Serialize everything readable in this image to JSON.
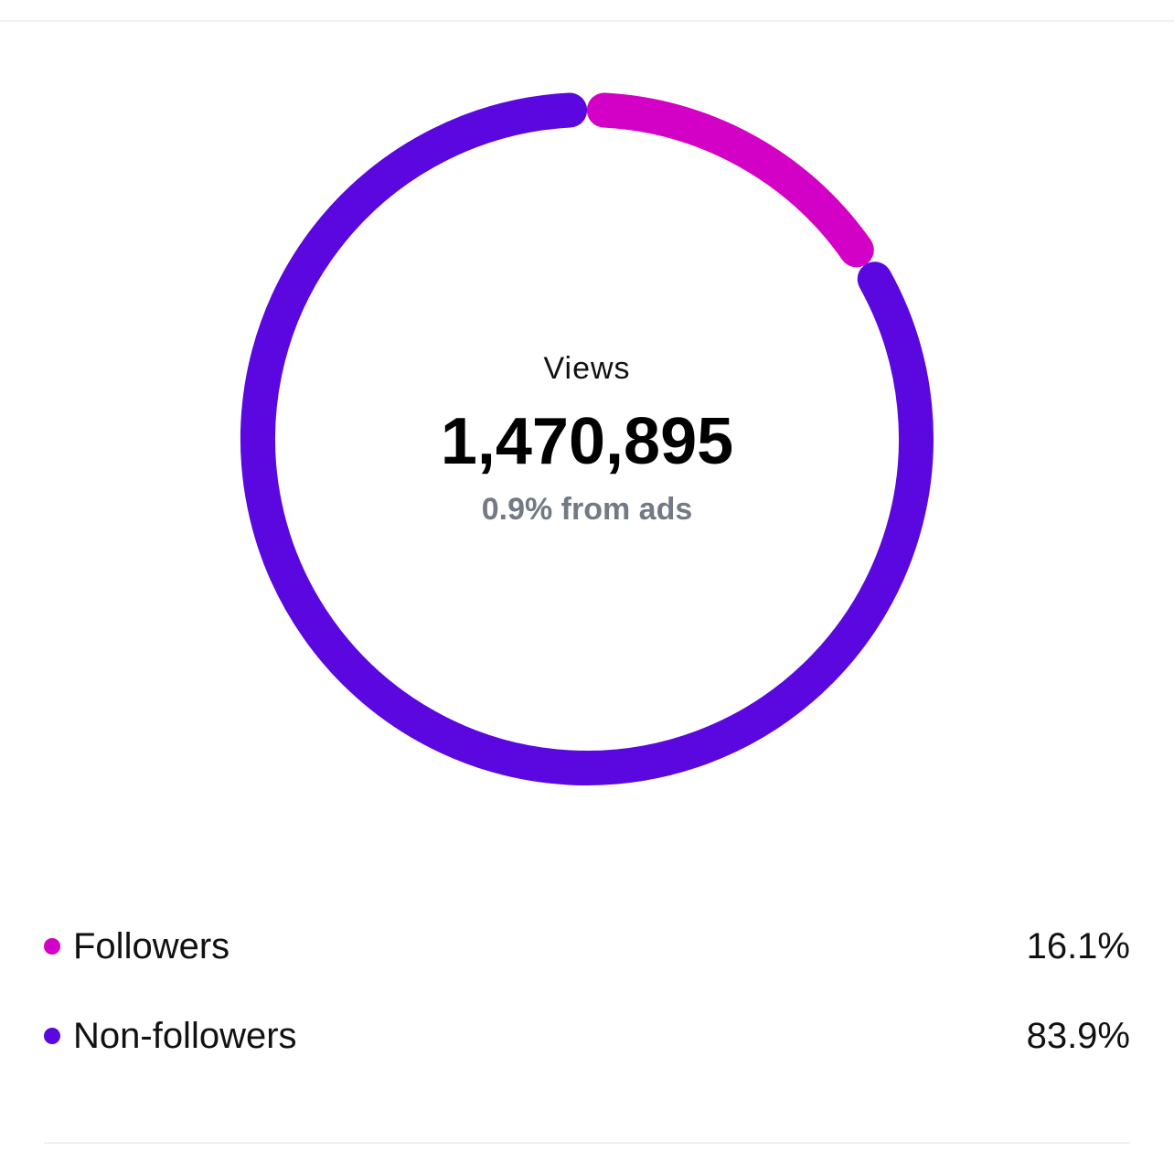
{
  "center": {
    "title": "Views",
    "value": "1,470,895",
    "subtitle": "0.9% from ads"
  },
  "chart_data": {
    "type": "pie",
    "donut": true,
    "categories": [
      "Followers",
      "Non-followers"
    ],
    "values": [
      16.1,
      83.9
    ],
    "value_labels": [
      "16.1%",
      "83.9%"
    ],
    "colors": [
      "#d300c5",
      "#5a07e0"
    ],
    "legend_position": "bottom"
  }
}
